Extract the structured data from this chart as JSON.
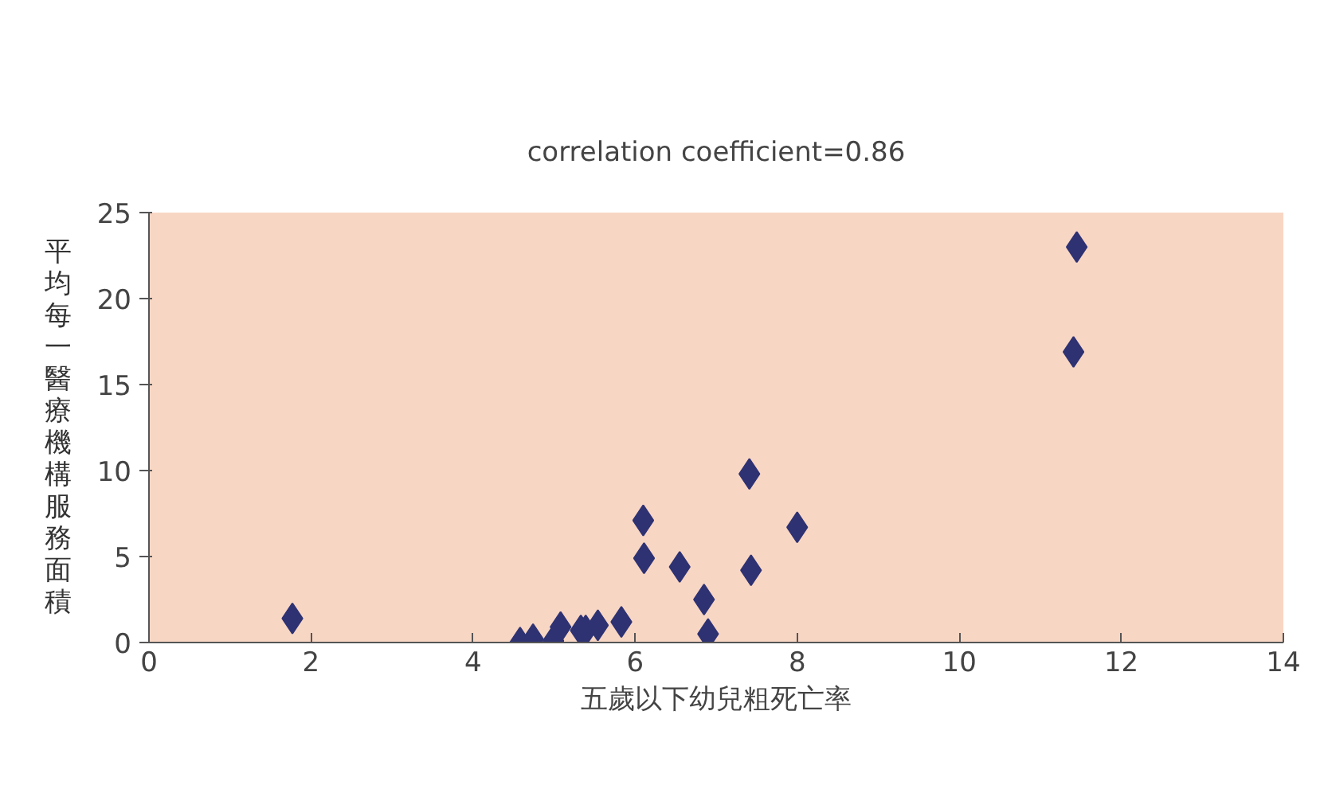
{
  "chart_data": {
    "type": "scatter",
    "title": "correlation coefficient=0.86",
    "xlabel": "五歲以下幼兒粗死亡率",
    "ylabel": "平均每一醫療機構服務面積",
    "x": [
      1.77,
      4.58,
      4.74,
      4.99,
      5.08,
      5.33,
      5.39,
      5.54,
      5.83,
      6.1,
      6.11,
      6.55,
      6.85,
      6.9,
      7.41,
      7.43,
      8.0,
      11.41,
      11.45
    ],
    "values": [
      1.4,
      0.0,
      0.2,
      0.1,
      0.9,
      0.7,
      0.7,
      1.0,
      1.2,
      7.1,
      4.9,
      4.4,
      2.5,
      0.5,
      9.8,
      4.2,
      6.7,
      16.9,
      23.0
    ],
    "color": "#2e3272",
    "marker": "diamond",
    "xlim": [
      0,
      14
    ],
    "xticks": [
      0,
      2,
      4,
      6,
      8,
      10,
      12,
      14
    ],
    "ylim": [
      0,
      25
    ],
    "yticks": [
      0,
      5,
      10,
      15,
      20,
      25
    ],
    "grid": false
  }
}
